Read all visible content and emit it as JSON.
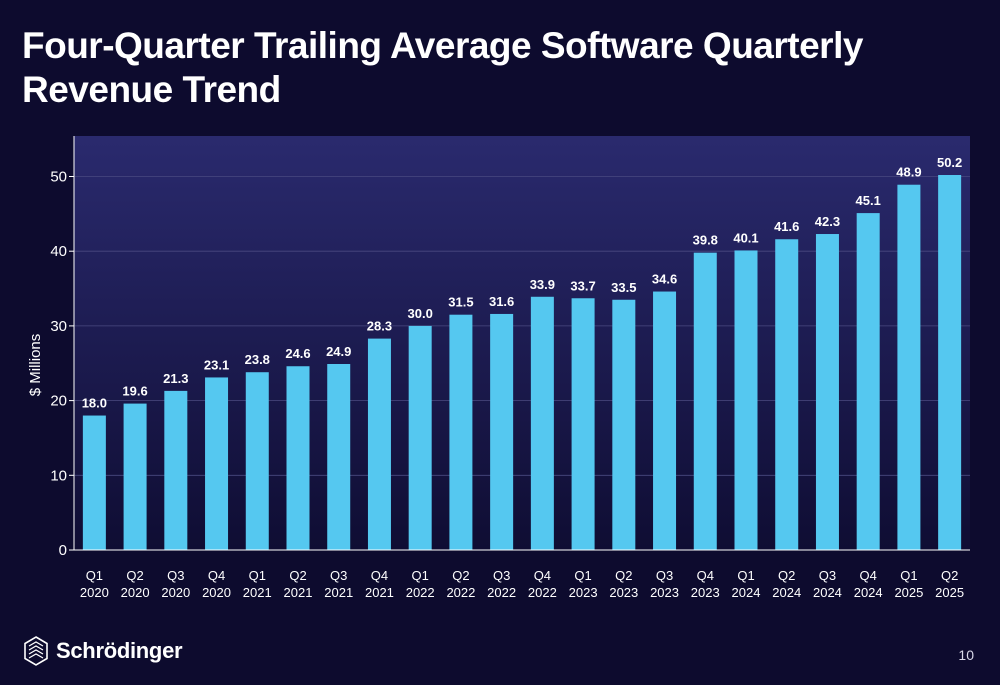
{
  "title": "Four-Quarter Trailing Average Software Quarterly Revenue Trend",
  "page_number": "10",
  "logo": {
    "text": "Schrödinger",
    "icon": "schrodinger-logo-icon"
  },
  "colors": {
    "bar": "#55c8f0",
    "background": "#0d0b2e",
    "plot_bg_top": "#2a2a6e",
    "plot_bg_bottom": "#0f0d33",
    "text": "#ffffff"
  },
  "chart_data": {
    "type": "bar",
    "categories": [
      [
        "Q1",
        "2020"
      ],
      [
        "Q2",
        "2020"
      ],
      [
        "Q3",
        "2020"
      ],
      [
        "Q4",
        "2020"
      ],
      [
        "Q1",
        "2021"
      ],
      [
        "Q2",
        "2021"
      ],
      [
        "Q3",
        "2021"
      ],
      [
        "Q4",
        "2021"
      ],
      [
        "Q1",
        "2022"
      ],
      [
        "Q2",
        "2022"
      ],
      [
        "Q3",
        "2022"
      ],
      [
        "Q4",
        "2022"
      ],
      [
        "Q1",
        "2023"
      ],
      [
        "Q2",
        "2023"
      ],
      [
        "Q3",
        "2023"
      ],
      [
        "Q4",
        "2023"
      ],
      [
        "Q1",
        "2024"
      ],
      [
        "Q2",
        "2024"
      ],
      [
        "Q3",
        "2024"
      ],
      [
        "Q4",
        "2024"
      ],
      [
        "Q1",
        "2025"
      ],
      [
        "Q2",
        "2025"
      ]
    ],
    "values": [
      18.0,
      19.6,
      21.3,
      23.1,
      23.8,
      24.6,
      24.9,
      28.3,
      30.0,
      31.5,
      31.6,
      33.9,
      33.7,
      33.5,
      34.6,
      39.8,
      40.1,
      41.6,
      42.3,
      45.1,
      48.9,
      50.2
    ],
    "value_labels": [
      "18.0",
      "19.6",
      "21.3",
      "23.1",
      "23.8",
      "24.6",
      "24.9",
      "28.3",
      "30.0",
      "31.5",
      "31.6",
      "33.9",
      "33.7",
      "33.5",
      "34.6",
      "39.8",
      "40.1",
      "41.6",
      "42.3",
      "45.1",
      "48.9",
      "50.2"
    ],
    "ylabel": "$ Millions",
    "xlabel": "",
    "ylim": [
      0,
      55
    ],
    "yticks": [
      0,
      10,
      20,
      30,
      40,
      50
    ],
    "grid": true,
    "legend": "none"
  }
}
